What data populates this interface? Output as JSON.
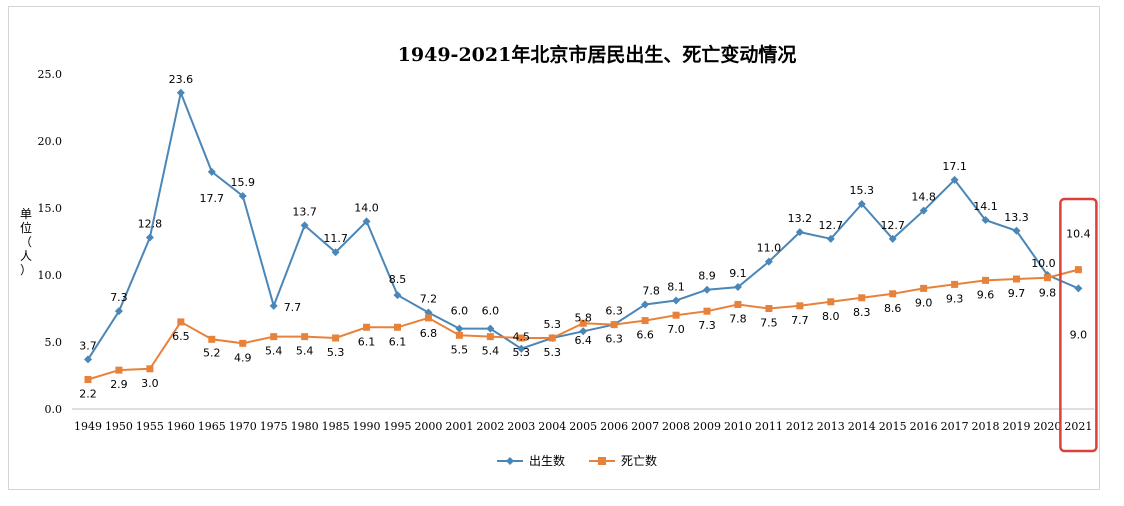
{
  "chart_data": {
    "type": "line",
    "title": "1949-2021年北京市居民出生、死亡变动情况",
    "ylabel": "单位（人）",
    "xlabel": "",
    "ylim": [
      0,
      25
    ],
    "y_ticks": [
      "0.0",
      "5.0",
      "10.0",
      "15.0",
      "20.0",
      "25.0"
    ],
    "categories": [
      "1949",
      "1950",
      "1955",
      "1960",
      "1965",
      "1970",
      "1975",
      "1980",
      "1985",
      "1990",
      "1995",
      "2000",
      "2001",
      "2002",
      "2003",
      "2004",
      "2005",
      "2006",
      "2007",
      "2008",
      "2009",
      "2010",
      "2011",
      "2012",
      "2013",
      "2014",
      "2015",
      "2016",
      "2017",
      "2018",
      "2019",
      "2020",
      "2021"
    ],
    "series": [
      {
        "name": "出生数",
        "color": "#4a86b7",
        "marker": "diamond",
        "values": [
          3.7,
          7.3,
          12.8,
          23.6,
          17.7,
          15.9,
          7.7,
          13.7,
          11.7,
          14.0,
          8.5,
          7.2,
          6.0,
          6.0,
          4.5,
          5.3,
          5.8,
          6.3,
          7.8,
          8.1,
          8.9,
          9.1,
          11.0,
          13.2,
          12.7,
          15.3,
          12.7,
          14.8,
          17.1,
          14.1,
          13.3,
          10.0,
          9.0
        ],
        "labels": [
          "3.7",
          "7.3",
          "12.8",
          "23.6",
          "17.7",
          "15.9",
          "7.7",
          "13.7",
          "11.7",
          "14.0",
          "8.5",
          "7.2",
          "6.0",
          "6.0",
          "4.5",
          "5.3",
          "5.8",
          "6.3",
          "7.8",
          "8.1",
          "8.9",
          "9.1",
          "11.0",
          "13.2",
          "12.7",
          "15.3",
          "12.7",
          "14.8",
          "17.1",
          "14.1",
          "13.3",
          "10.0",
          "9.0"
        ]
      },
      {
        "name": "死亡数",
        "color": "#e8823a",
        "marker": "square",
        "values": [
          2.2,
          2.9,
          3.0,
          6.5,
          5.2,
          4.9,
          5.4,
          5.4,
          5.3,
          6.1,
          6.1,
          6.8,
          5.5,
          5.4,
          5.3,
          5.3,
          6.4,
          6.3,
          6.6,
          7.0,
          7.3,
          7.8,
          7.5,
          7.7,
          8.0,
          8.3,
          8.6,
          9.0,
          9.3,
          9.6,
          9.7,
          9.8,
          10.4
        ],
        "labels": [
          "2.2",
          "2.9",
          "3.0",
          "6.5",
          "5.2",
          "4.9",
          "5.4",
          "5.4",
          "5.3",
          "6.1",
          "6.1",
          "6.8",
          "5.5",
          "5.4",
          "5.3",
          "5.3",
          "6.4",
          "6.3",
          "6.6",
          "7.0",
          "7.3",
          "7.8",
          "7.5",
          "7.7",
          "8.0",
          "8.3",
          "8.6",
          "9.0",
          "9.3",
          "9.6",
          "9.7",
          "9.8",
          "10.4"
        ]
      }
    ],
    "grid": false,
    "legend_position": "bottom-center",
    "highlight": {
      "category": "2021",
      "color": "#d9413a"
    }
  }
}
